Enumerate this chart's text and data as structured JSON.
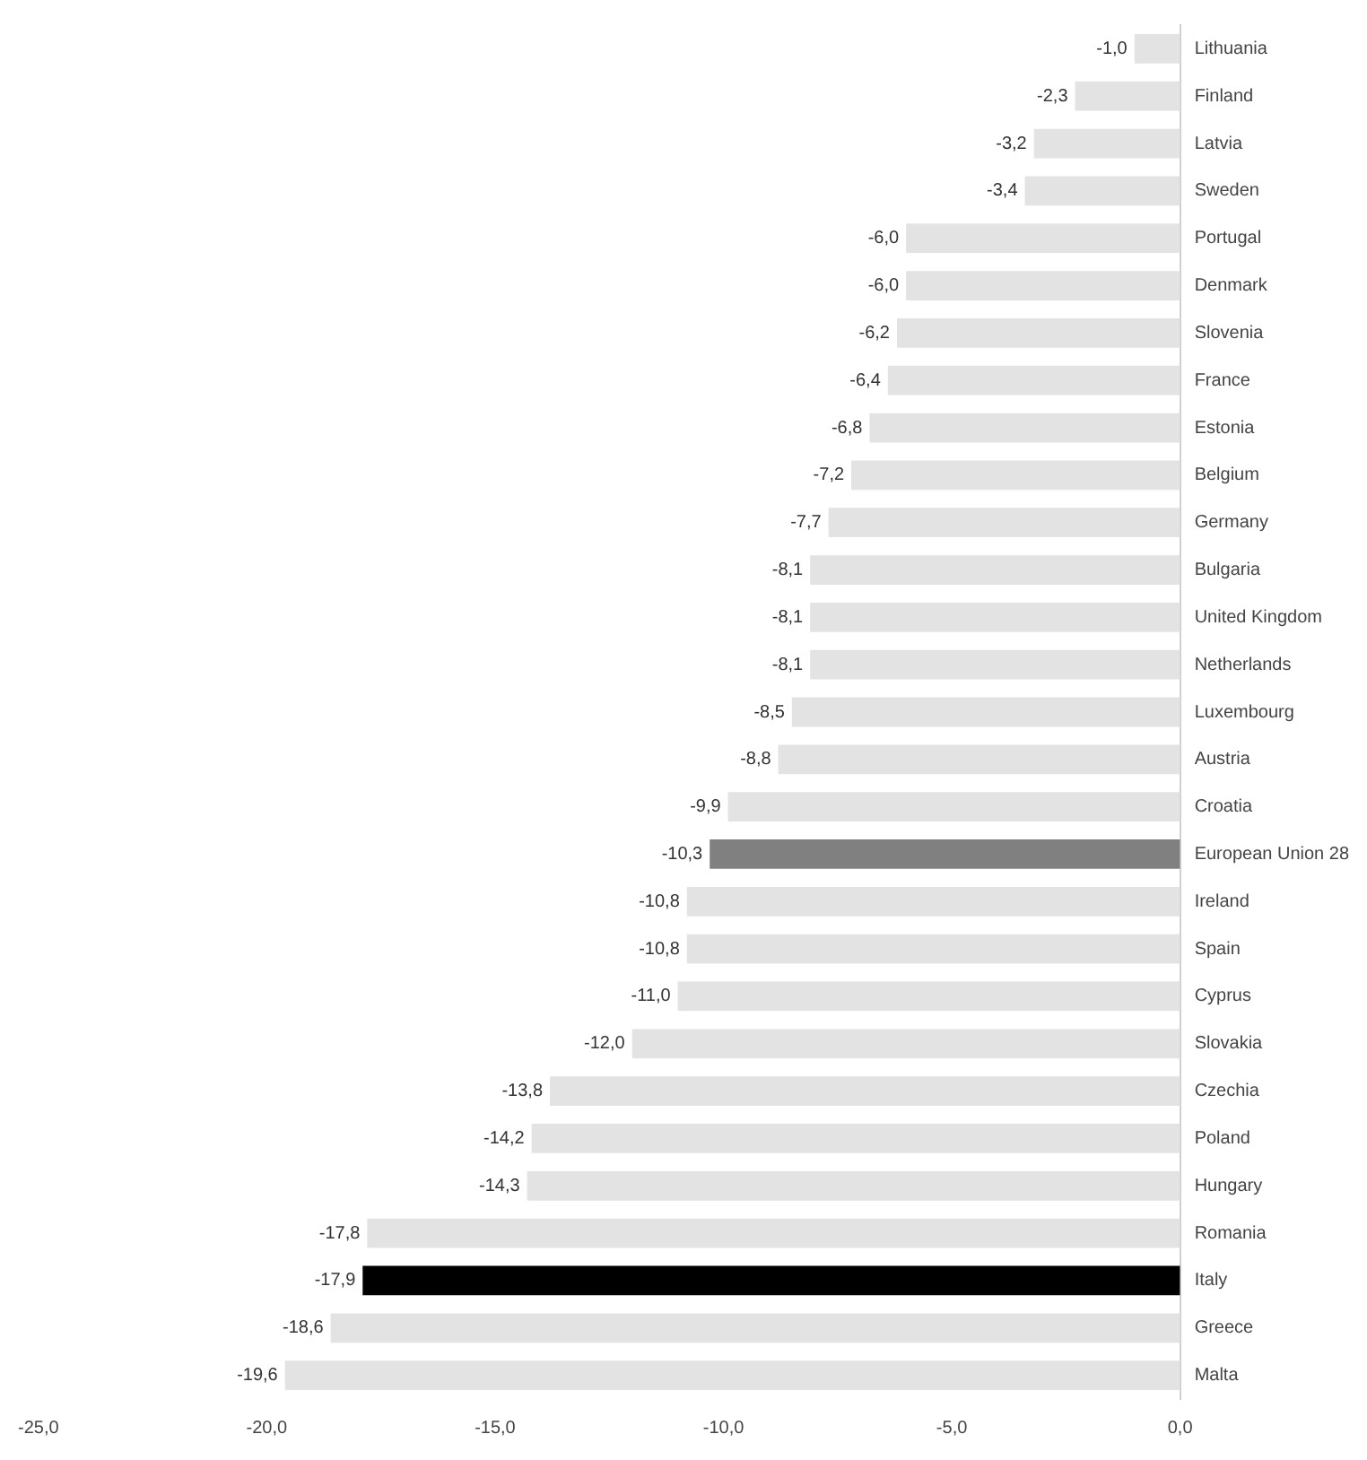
{
  "chart_data": {
    "type": "bar",
    "orientation": "horizontal",
    "categories": [
      "Lithuania",
      "Finland",
      "Latvia",
      "Sweden",
      "Portugal",
      "Denmark",
      "Slovenia",
      "France",
      "Estonia",
      "Belgium",
      "Germany",
      "Bulgaria",
      "United Kingdom",
      "Netherlands",
      "Luxembourg",
      "Austria",
      "Croatia",
      "European Union 28",
      "Ireland",
      "Spain",
      "Cyprus",
      "Slovakia",
      "Czechia",
      "Poland",
      "Hungary",
      "Romania",
      "Italy",
      "Greece",
      "Malta"
    ],
    "values": [
      -1.0,
      -2.3,
      -3.2,
      -3.4,
      -6.0,
      -6.0,
      -6.2,
      -6.4,
      -6.8,
      -7.2,
      -7.7,
      -8.1,
      -8.1,
      -8.1,
      -8.5,
      -8.8,
      -9.9,
      -10.3,
      -10.8,
      -10.8,
      -11.0,
      -12.0,
      -13.8,
      -14.2,
      -14.3,
      -17.8,
      -17.9,
      -18.6,
      -19.6
    ],
    "value_labels": [
      "-1,0",
      "-2,3",
      "-3,2",
      "-3,4",
      "-6,0",
      "-6,0",
      "-6,2",
      "-6,4",
      "-6,8",
      "-7,2",
      "-7,7",
      "-8,1",
      "-8,1",
      "-8,1",
      "-8,5",
      "-8,8",
      "-9,9",
      "-10,3",
      "-10,8",
      "-10,8",
      "-11,0",
      "-12,0",
      "-13,8",
      "-14,2",
      "-14,3",
      "-17,8",
      "-17,9",
      "-18,6",
      "-19,6"
    ],
    "colors": [
      "#e3e3e3",
      "#e3e3e3",
      "#e3e3e3",
      "#e3e3e3",
      "#e3e3e3",
      "#e3e3e3",
      "#e3e3e3",
      "#e3e3e3",
      "#e3e3e3",
      "#e3e3e3",
      "#e3e3e3",
      "#e3e3e3",
      "#e3e3e3",
      "#e3e3e3",
      "#e3e3e3",
      "#e3e3e3",
      "#e3e3e3",
      "#808080",
      "#e3e3e3",
      "#e3e3e3",
      "#e3e3e3",
      "#e3e3e3",
      "#e3e3e3",
      "#e3e3e3",
      "#e3e3e3",
      "#e3e3e3",
      "#000000",
      "#e3e3e3",
      "#e3e3e3"
    ],
    "xlim": [
      -25,
      0
    ],
    "xticks": [
      {
        "value": -25,
        "label": "-25,0"
      },
      {
        "value": -20,
        "label": "-20,0"
      },
      {
        "value": -15,
        "label": "-15,0"
      },
      {
        "value": -10,
        "label": "-10,0"
      },
      {
        "value": -5,
        "label": "-5,0"
      },
      {
        "value": 0,
        "label": "0,0"
      }
    ],
    "grid": false,
    "legend": false
  }
}
